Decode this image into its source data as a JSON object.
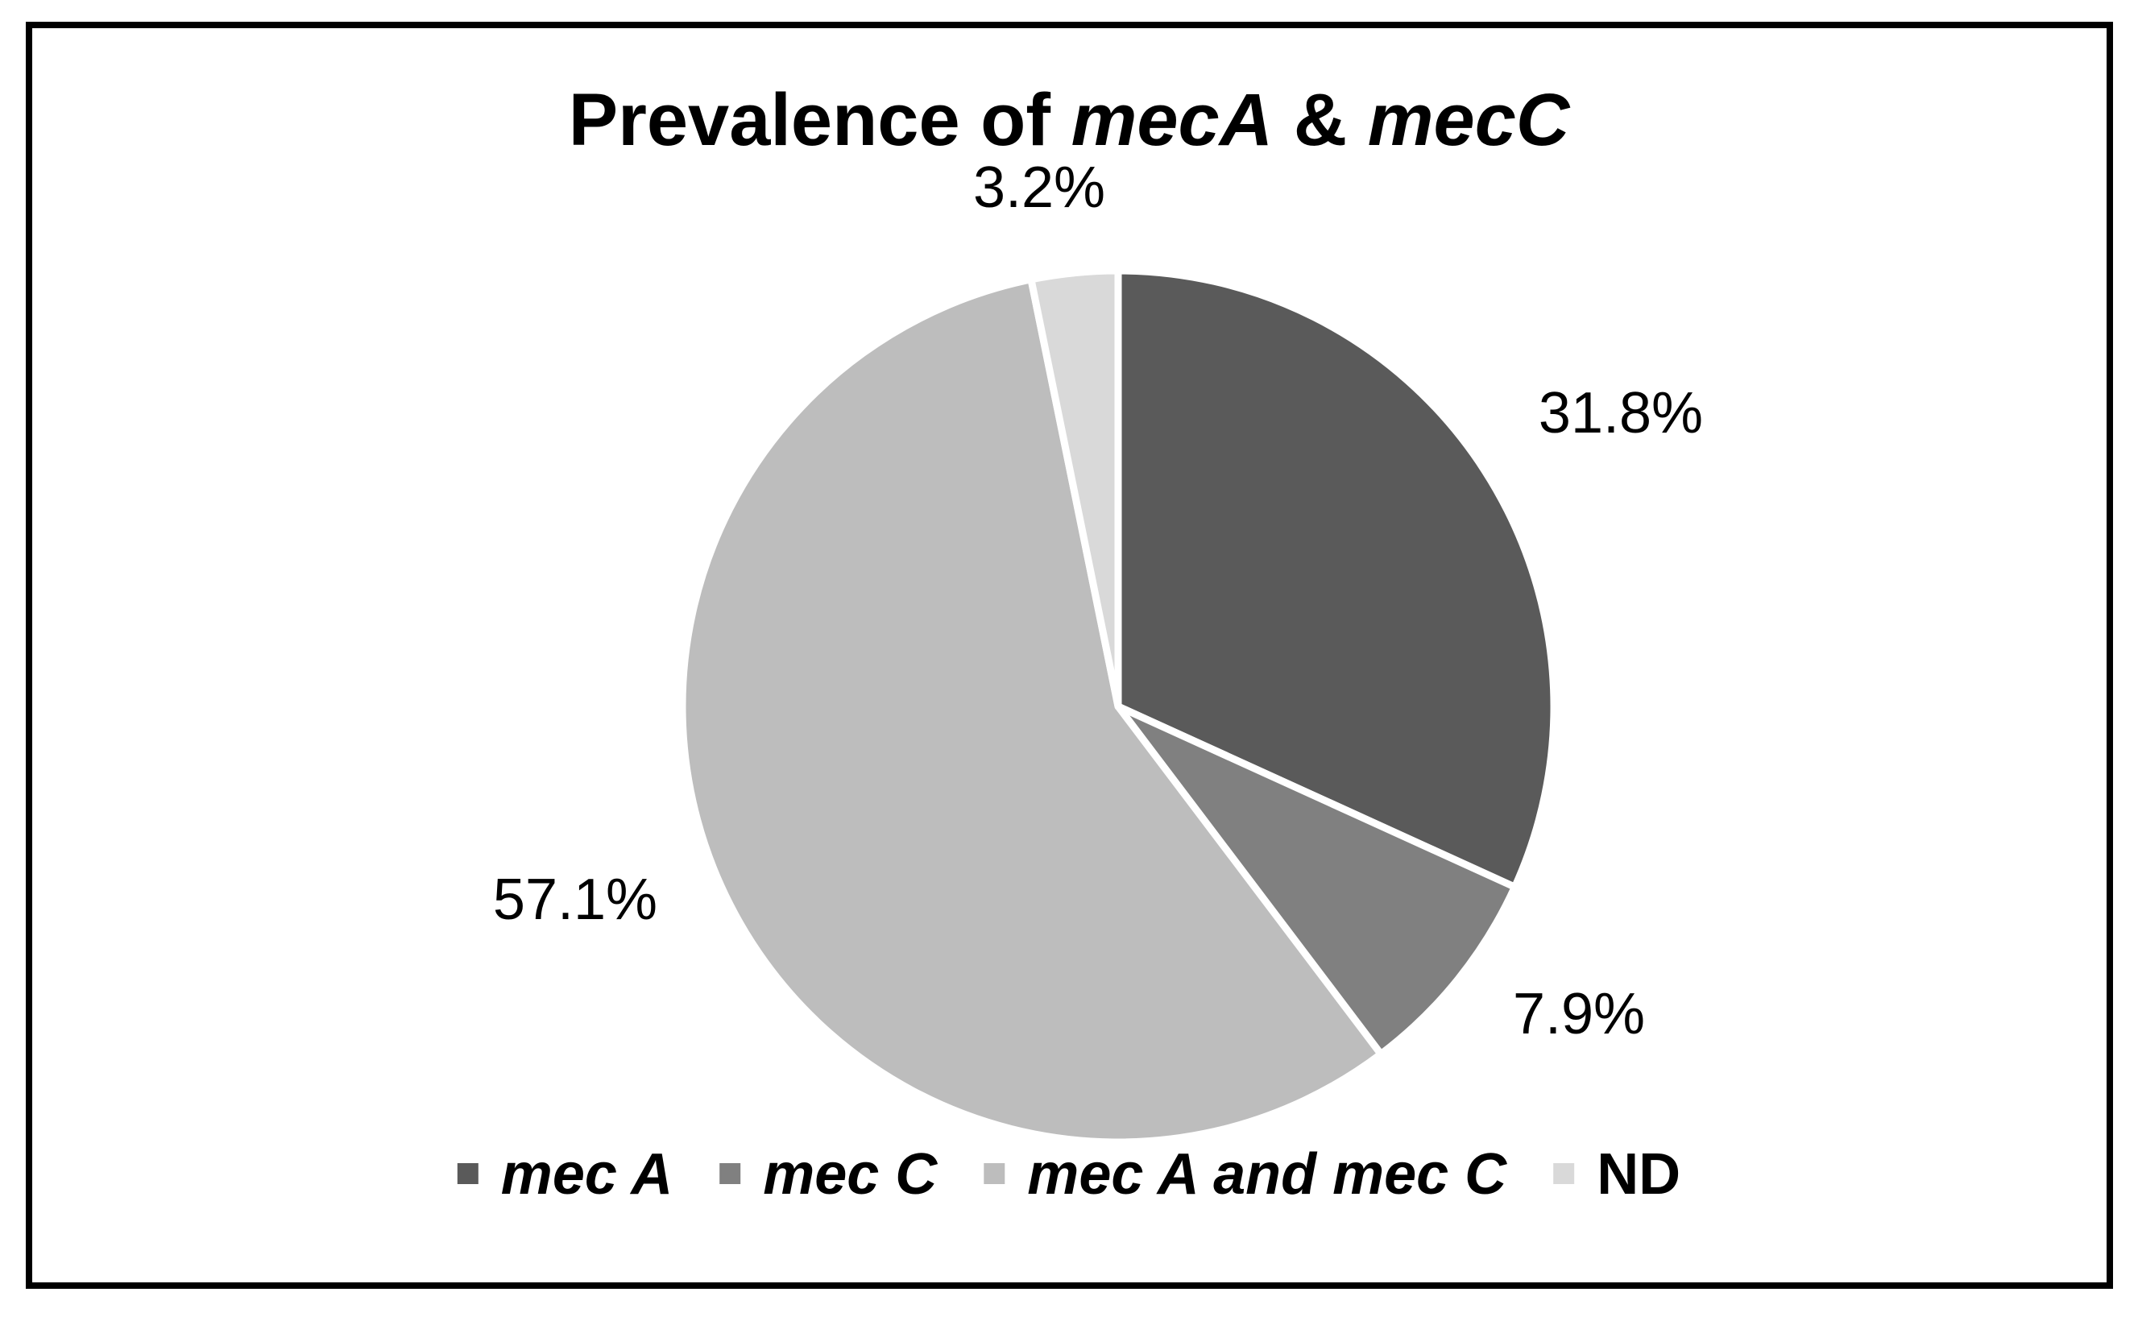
{
  "chart_data": {
    "type": "pie",
    "title_parts": [
      {
        "text": "Prevalence of ",
        "italic": false
      },
      {
        "text": "mecA",
        "italic": true
      },
      {
        "text": " & ",
        "italic": false
      },
      {
        "text": "mecC",
        "italic": true
      }
    ],
    "title": "Prevalence of mecA & mecC",
    "categories": [
      "mec A",
      "mec C",
      "mec A and mec C",
      "ND"
    ],
    "values": [
      31.8,
      7.9,
      57.1,
      3.2
    ],
    "labels": [
      "31.8%",
      "7.9%",
      "57.1%",
      "3.2%"
    ],
    "colors": [
      "#5a5a5a",
      "#808080",
      "#bdbdbd",
      "#d9d9d9"
    ],
    "legend_italic": [
      true,
      true,
      true,
      false
    ],
    "legend_position": "bottom",
    "start_angle": "12 o'clock",
    "direction": "clockwise"
  }
}
